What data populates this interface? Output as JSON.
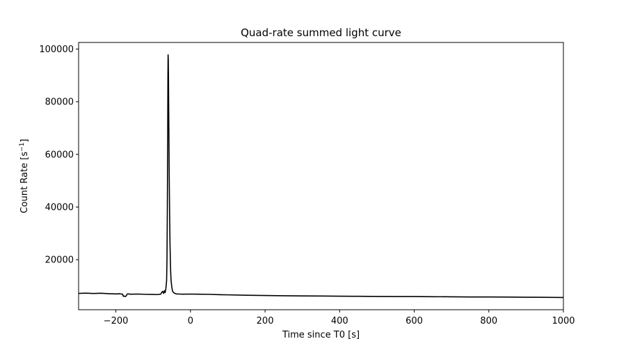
{
  "chart_data": {
    "type": "line",
    "title": "Quad-rate summed light curve",
    "xlabel": "Time since T0 [s]",
    "ylabel_main": "Count Rate [s",
    "ylabel_exp": "−1",
    "ylabel_close": "]",
    "xlim": [
      -300,
      1000
    ],
    "ylim": [
      1000,
      102500
    ],
    "x_ticks": [
      -200,
      0,
      200,
      400,
      600,
      800,
      1000
    ],
    "x_tick_labels": [
      "−200",
      "0",
      "200",
      "400",
      "600",
      "800",
      "1000"
    ],
    "y_ticks": [
      20000,
      40000,
      60000,
      80000,
      100000
    ],
    "y_tick_labels": [
      "20000",
      "40000",
      "60000",
      "80000",
      "100000"
    ],
    "grid": false,
    "line_color": "#000000",
    "series": [
      {
        "x": [
          -300,
          -280,
          -260,
          -240,
          -220,
          -200,
          -190,
          -182,
          -180,
          -178,
          -175,
          -172,
          -170,
          -168,
          -160,
          -140,
          -120,
          -100,
          -90,
          -80,
          -75,
          -72,
          -70,
          -68,
          -66,
          -64,
          -63,
          -62,
          -61,
          -60.5,
          -60,
          -59.5,
          -59,
          -58.5,
          -58,
          -57,
          -56,
          -55,
          -54,
          -53,
          -52,
          -50,
          -48,
          -45,
          -42,
          -38,
          -30,
          -20,
          0,
          20,
          50,
          80,
          100,
          150,
          200,
          250,
          300,
          350,
          400,
          450,
          500,
          550,
          600,
          650,
          700,
          750,
          800,
          850,
          900,
          950,
          1000
        ],
        "y": [
          7200,
          7300,
          7150,
          7250,
          7100,
          7000,
          7050,
          6900,
          6100,
          6200,
          6000,
          6300,
          6900,
          7000,
          6900,
          6950,
          6850,
          6800,
          6750,
          6900,
          8000,
          7200,
          8200,
          7500,
          9000,
          12000,
          20000,
          40000,
          70000,
          90000,
          97800,
          96000,
          90000,
          80000,
          70000,
          52000,
          38000,
          27000,
          20000,
          15000,
          12000,
          9500,
          8000,
          7500,
          7200,
          7000,
          6950,
          6900,
          6950,
          6900,
          6850,
          6700,
          6650,
          6500,
          6400,
          6300,
          6250,
          6200,
          6150,
          6100,
          6050,
          6000,
          6000,
          5950,
          5900,
          5850,
          5850,
          5800,
          5750,
          5700,
          5650
        ]
      }
    ]
  }
}
